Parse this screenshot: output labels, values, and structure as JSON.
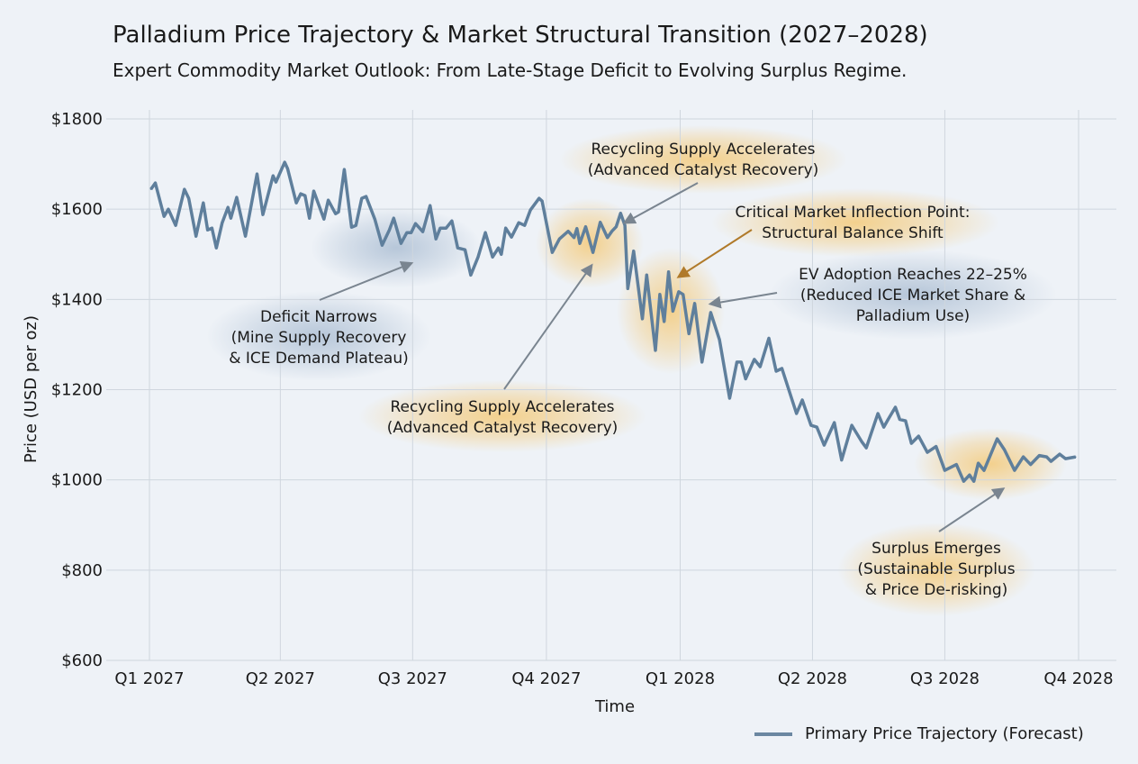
{
  "chart_data": {
    "type": "line",
    "title": "Palladium Price Trajectory & Market Structural Transition (2027–2028)",
    "subtitle": "Expert Commodity Market Outlook: From Late-Stage Deficit to Evolving Surplus Regime.",
    "xlabel": "Time",
    "ylabel": "Price (USD per oz)",
    "ylim": [
      600,
      1800
    ],
    "y_ticks": [
      "$1800",
      "$1600",
      "$1400",
      "$1200",
      "$1000",
      "$800",
      "$600"
    ],
    "y_tick_values": [
      1800,
      1600,
      1400,
      1200,
      1000,
      800,
      600
    ],
    "x_ticks": [
      "Q1 2027",
      "Q2 2027",
      "Q3 2027",
      "Q4 2027",
      "Q1 2028",
      "Q2 2028",
      "Q3 2028",
      "Q4 2028"
    ],
    "x_tick_dates": [
      "2027-01-01",
      "2027-04-01",
      "2027-07-01",
      "2027-10-01",
      "2028-01-01",
      "2028-04-01",
      "2028-07-01",
      "2028-10-01"
    ],
    "grid": true,
    "legend_position": "bottom-right",
    "colors": {
      "line": "#5f7f9c",
      "background": "#eef2f7",
      "grid": "#cfd6de",
      "orange_glow": "#f5c56a",
      "blue_glow": "#9fb4cc",
      "inflection_arrow": "#b07a2a",
      "arrow": "#7a8590"
    },
    "series": [
      {
        "name": "Primary Price Trajectory (Forecast)",
        "points": [
          [
            "2027-01-02",
            1644
          ],
          [
            "2027-01-05",
            1658
          ],
          [
            "2027-01-11",
            1584
          ],
          [
            "2027-01-14",
            1600
          ],
          [
            "2027-01-19",
            1564
          ],
          [
            "2027-01-25",
            1644
          ],
          [
            "2027-01-28",
            1624
          ],
          [
            "2027-02-02",
            1540
          ],
          [
            "2027-02-07",
            1614
          ],
          [
            "2027-02-10",
            1554
          ],
          [
            "2027-02-13",
            1558
          ],
          [
            "2027-02-16",
            1514
          ],
          [
            "2027-02-20",
            1570
          ],
          [
            "2027-02-24",
            1604
          ],
          [
            "2027-02-26",
            1580
          ],
          [
            "2027-03-02",
            1626
          ],
          [
            "2027-03-08",
            1540
          ],
          [
            "2027-03-16",
            1678
          ],
          [
            "2027-03-20",
            1588
          ],
          [
            "2027-03-27",
            1674
          ],
          [
            "2027-03-29",
            1660
          ],
          [
            "2027-04-04",
            1704
          ],
          [
            "2027-04-06",
            1690
          ],
          [
            "2027-04-12",
            1614
          ],
          [
            "2027-04-15",
            1634
          ],
          [
            "2027-04-18",
            1630
          ],
          [
            "2027-04-21",
            1580
          ],
          [
            "2027-04-24",
            1640
          ],
          [
            "2027-05-01",
            1578
          ],
          [
            "2027-05-04",
            1620
          ],
          [
            "2027-05-09",
            1590
          ],
          [
            "2027-05-11",
            1594
          ],
          [
            "2027-05-15",
            1688
          ],
          [
            "2027-05-20",
            1560
          ],
          [
            "2027-05-23",
            1564
          ],
          [
            "2027-05-27",
            1624
          ],
          [
            "2027-05-30",
            1628
          ],
          [
            "2027-06-05",
            1578
          ],
          [
            "2027-06-10",
            1520
          ],
          [
            "2027-06-15",
            1554
          ],
          [
            "2027-06-18",
            1580
          ],
          [
            "2027-06-23",
            1524
          ],
          [
            "2027-06-27",
            1548
          ],
          [
            "2027-06-30",
            1548
          ],
          [
            "2027-07-03",
            1568
          ],
          [
            "2027-07-08",
            1550
          ],
          [
            "2027-07-13",
            1608
          ],
          [
            "2027-07-17",
            1534
          ],
          [
            "2027-07-20",
            1558
          ],
          [
            "2027-07-24",
            1558
          ],
          [
            "2027-07-28",
            1574
          ],
          [
            "2027-08-01",
            1514
          ],
          [
            "2027-08-06",
            1510
          ],
          [
            "2027-08-10",
            1454
          ],
          [
            "2027-08-15",
            1494
          ],
          [
            "2027-08-20",
            1548
          ],
          [
            "2027-08-25",
            1494
          ],
          [
            "2027-08-29",
            1514
          ],
          [
            "2027-08-31",
            1500
          ],
          [
            "2027-09-03",
            1558
          ],
          [
            "2027-09-07",
            1538
          ],
          [
            "2027-09-12",
            1570
          ],
          [
            "2027-09-16",
            1564
          ],
          [
            "2027-09-20",
            1598
          ],
          [
            "2027-09-26",
            1624
          ],
          [
            "2027-09-28",
            1618
          ],
          [
            "2027-10-05",
            1504
          ],
          [
            "2027-10-10",
            1534
          ],
          [
            "2027-10-16",
            1551
          ],
          [
            "2027-10-20",
            1537
          ],
          [
            "2027-10-22",
            1557
          ],
          [
            "2027-10-24",
            1524
          ],
          [
            "2027-10-28",
            1561
          ],
          [
            "2027-11-02",
            1504
          ],
          [
            "2027-11-07",
            1571
          ],
          [
            "2027-11-12",
            1537
          ],
          [
            "2027-11-15",
            1551
          ],
          [
            "2027-11-18",
            1561
          ],
          [
            "2027-11-21",
            1591
          ],
          [
            "2027-11-24",
            1564
          ],
          [
            "2027-11-26",
            1424
          ],
          [
            "2027-11-30",
            1507
          ],
          [
            "2027-12-06",
            1357
          ],
          [
            "2027-12-09",
            1454
          ],
          [
            "2027-12-15",
            1287
          ],
          [
            "2027-12-18",
            1411
          ],
          [
            "2027-12-21",
            1351
          ],
          [
            "2027-12-24",
            1461
          ],
          [
            "2027-12-27",
            1374
          ],
          [
            "2027-12-31",
            1417
          ],
          [
            "2028-01-03",
            1411
          ],
          [
            "2028-01-07",
            1324
          ],
          [
            "2028-01-11",
            1391
          ],
          [
            "2028-01-16",
            1261
          ],
          [
            "2028-01-22",
            1371
          ],
          [
            "2028-01-28",
            1311
          ],
          [
            "2028-02-04",
            1181
          ],
          [
            "2028-02-09",
            1261
          ],
          [
            "2028-02-12",
            1261
          ],
          [
            "2028-02-15",
            1224
          ],
          [
            "2028-02-21",
            1267
          ],
          [
            "2028-02-25",
            1251
          ],
          [
            "2028-03-02",
            1314
          ],
          [
            "2028-03-07",
            1241
          ],
          [
            "2028-03-11",
            1247
          ],
          [
            "2028-03-21",
            1147
          ],
          [
            "2028-03-25",
            1177
          ],
          [
            "2028-03-31",
            1121
          ],
          [
            "2028-04-04",
            1117
          ],
          [
            "2028-04-09",
            1077
          ],
          [
            "2028-04-16",
            1127
          ],
          [
            "2028-04-21",
            1044
          ],
          [
            "2028-04-28",
            1121
          ],
          [
            "2028-05-05",
            1084
          ],
          [
            "2028-05-08",
            1071
          ],
          [
            "2028-05-16",
            1147
          ],
          [
            "2028-05-20",
            1117
          ],
          [
            "2028-05-23",
            1134
          ],
          [
            "2028-05-28",
            1161
          ],
          [
            "2028-05-31",
            1134
          ],
          [
            "2028-06-04",
            1131
          ],
          [
            "2028-06-08",
            1081
          ],
          [
            "2028-06-13",
            1097
          ],
          [
            "2028-06-19",
            1061
          ],
          [
            "2028-06-25",
            1074
          ],
          [
            "2028-07-01",
            1021
          ],
          [
            "2028-07-09",
            1034
          ],
          [
            "2028-07-14",
            997
          ],
          [
            "2028-07-18",
            1011
          ],
          [
            "2028-07-21",
            997
          ],
          [
            "2028-07-24",
            1037
          ],
          [
            "2028-07-28",
            1021
          ],
          [
            "2028-08-06",
            1091
          ],
          [
            "2028-08-11",
            1067
          ],
          [
            "2028-08-18",
            1021
          ],
          [
            "2028-08-24",
            1051
          ],
          [
            "2028-08-29",
            1034
          ],
          [
            "2028-09-04",
            1054
          ],
          [
            "2028-09-09",
            1051
          ],
          [
            "2028-09-12",
            1041
          ],
          [
            "2028-09-18",
            1057
          ],
          [
            "2028-09-22",
            1047
          ],
          [
            "2028-09-29",
            1051
          ]
        ]
      }
    ],
    "annotations": [
      {
        "lines": [
          "Recycling Supply Accelerates",
          "(Advanced Catalyst Recovery)"
        ],
        "glow": "orange",
        "target": [
          "2027-11-24",
          1570
        ]
      },
      {
        "lines": [
          "Critical Market Inflection Point:",
          "Structural Balance Shift"
        ],
        "glow": "orange",
        "target": [
          "2027-12-31",
          1450
        ]
      },
      {
        "lines": [
          "EV Adoption Reaches 22–25%",
          "(Reduced ICE Market Share &",
          "Palladium Use)"
        ],
        "glow": "blue",
        "target": [
          "2028-01-22",
          1390
        ]
      },
      {
        "lines": [
          "Deficit Narrows",
          "(Mine Supply Recovery",
          "& ICE Demand Plateau)"
        ],
        "glow": "blue",
        "target": [
          "2027-06-30",
          1480
        ]
      },
      {
        "lines": [
          "Recycling Supply Accelerates",
          "(Advanced Catalyst Recovery)"
        ],
        "glow": "orange",
        "target": [
          "2027-11-01",
          1475
        ]
      },
      {
        "lines": [
          "Surplus Emerges",
          "(Sustainable Surplus",
          "& Price De-risking)"
        ],
        "glow": "orange",
        "target": [
          "2028-08-10",
          980
        ]
      }
    ]
  },
  "legend": {
    "label": "Primary Price Trajectory (Forecast)"
  }
}
